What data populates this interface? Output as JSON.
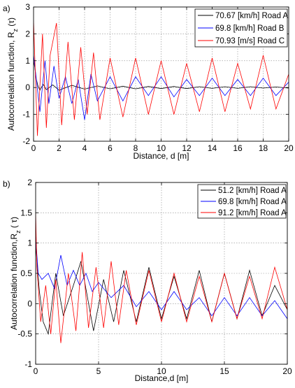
{
  "chart_data": [
    {
      "type": "line",
      "panel_label": "a)",
      "xlabel": "Distance, d [m]",
      "ylabel": "Autocorrelation function, R",
      "ylabel_sub": "z",
      "ylabel_suffix": " (τ)",
      "xlim": [
        0,
        20
      ],
      "ylim": [
        -2,
        3
      ],
      "xticks": [
        0,
        2,
        4,
        6,
        8,
        10,
        12,
        14,
        16,
        18,
        20
      ],
      "yticks": [
        -2,
        -1,
        0,
        1,
        2,
        3
      ],
      "grid": true,
      "legend_position": "top-right",
      "series": [
        {
          "name": "70.67 [km/h] Road A",
          "color": "#000000",
          "x": [
            0,
            0.1,
            0.2,
            0.35,
            0.5,
            0.75,
            1,
            1.5,
            2,
            3,
            4,
            5,
            6,
            7,
            8,
            9,
            10,
            11,
            12,
            13,
            14,
            15,
            16,
            17,
            18,
            19,
            20
          ],
          "y": [
            1,
            0.75,
            0.35,
            0.05,
            -0.1,
            0.12,
            -0.08,
            0.1,
            -0.1,
            0.08,
            -0.06,
            0.06,
            -0.05,
            0.05,
            -0.05,
            0.04,
            -0.04,
            0.04,
            -0.04,
            0.03,
            -0.03,
            0.03,
            -0.03,
            0.03,
            -0.02,
            0.02,
            -0.02
          ]
        },
        {
          "name": "69.8 [km/h] Road B",
          "color": "#0000ff",
          "x": [
            0,
            0.2,
            0.5,
            0.9,
            1.2,
            1.6,
            2,
            2.5,
            3,
            3.5,
            4,
            4.5,
            5,
            6,
            7,
            8,
            9,
            10,
            11,
            12,
            13,
            14,
            15,
            16,
            17,
            18,
            19,
            20
          ],
          "y": [
            1.2,
            0.4,
            -0.9,
            1.0,
            -0.6,
            0.8,
            -0.4,
            0.4,
            -0.6,
            0.3,
            -1.2,
            0.5,
            -0.5,
            0.4,
            -0.5,
            0.4,
            -0.3,
            0.4,
            -0.35,
            0.3,
            -0.3,
            0.35,
            -0.3,
            0.3,
            -0.3,
            0.35,
            -0.3,
            0.2
          ]
        },
        {
          "name": "70.93 [m/s] Road C",
          "color": "#ff0000",
          "x": [
            0,
            0.3,
            0.7,
            1,
            1.3,
            1.8,
            2.2,
            2.7,
            3.2,
            3.7,
            4.2,
            4.7,
            5.2,
            6,
            7,
            8,
            9,
            10,
            11,
            12,
            13,
            14,
            15,
            16,
            17,
            18,
            19,
            20
          ],
          "y": [
            2.5,
            -1.8,
            2.0,
            -1.5,
            1.2,
            2.4,
            -1.4,
            1.7,
            -1.2,
            1.5,
            -1.0,
            1.3,
            -1.2,
            1.1,
            -1.1,
            1.1,
            -1.0,
            1.0,
            -1.0,
            0.9,
            -0.9,
            1.1,
            -0.9,
            0.9,
            -0.8,
            1.2,
            -0.8,
            0.5
          ]
        }
      ]
    },
    {
      "type": "line",
      "panel_label": "b)",
      "xlabel": "Distance,d [m]",
      "ylabel": "Autocorrelation function,R",
      "ylabel_sub": "z",
      "ylabel_suffix": " ( τ)",
      "xlim": [
        0,
        20
      ],
      "ylim": [
        -1,
        2
      ],
      "xticks": [
        0,
        5,
        10,
        15,
        20
      ],
      "yticks": [
        -1,
        -0.5,
        0,
        0.5,
        1,
        1.5,
        2
      ],
      "grid": true,
      "legend_position": "top-right",
      "series": [
        {
          "name": "51.2 [km/h] Road A",
          "color": "#000000",
          "x": [
            0,
            0.1,
            0.3,
            0.6,
            1,
            1.6,
            2.2,
            3,
            3.6,
            4.6,
            5.4,
            6.2,
            7,
            8,
            9,
            10,
            11,
            12,
            13,
            14,
            15,
            16,
            17,
            18,
            19,
            20
          ],
          "y": [
            1.0,
            0.7,
            0.2,
            -0.3,
            -0.5,
            0.5,
            -0.2,
            0.3,
            0.7,
            -0.45,
            0.4,
            -0.3,
            0.55,
            -0.3,
            0.6,
            -0.25,
            0.45,
            -0.25,
            0.55,
            -0.3,
            0.5,
            -0.25,
            0.55,
            -0.2,
            0.3,
            -0.1
          ]
        },
        {
          "name": "69.8 [km/h] Road A",
          "color": "#0000ff",
          "x": [
            0,
            0.2,
            0.5,
            1,
            1.5,
            2,
            2.5,
            3,
            3.5,
            4,
            4.5,
            5,
            6,
            7,
            8,
            9,
            10,
            11,
            12,
            13,
            14,
            15,
            16,
            17,
            18,
            19,
            20
          ],
          "y": [
            1.1,
            0.5,
            0.4,
            0.5,
            0.25,
            0.8,
            0.3,
            0.55,
            0.3,
            0.5,
            0.2,
            0.35,
            0.1,
            0.3,
            -0.05,
            0.2,
            -0.1,
            0.2,
            -0.1,
            0.1,
            -0.2,
            0.1,
            -0.2,
            0.1,
            -0.2,
            0.05,
            -0.25
          ]
        },
        {
          "name": "91.2 [km/h] Road A",
          "color": "#ff0000",
          "x": [
            0,
            0.1,
            0.4,
            0.8,
            1.2,
            1.6,
            2,
            2.6,
            3.2,
            3.7,
            4.2,
            4.8,
            5.4,
            6,
            6.6,
            7.2,
            8,
            9,
            10,
            11,
            12,
            13,
            14,
            15,
            16,
            17,
            18,
            19,
            20
          ],
          "y": [
            1.5,
            0.6,
            -0.3,
            0.3,
            -0.5,
            0.4,
            -0.65,
            0.5,
            -0.45,
            0.85,
            -0.4,
            0.6,
            -0.4,
            0.7,
            -0.35,
            0.55,
            -0.35,
            0.55,
            -0.3,
            0.5,
            -0.3,
            0.45,
            -0.3,
            0.5,
            -0.25,
            0.45,
            -0.25,
            0.6,
            -0.1
          ]
        }
      ]
    }
  ]
}
